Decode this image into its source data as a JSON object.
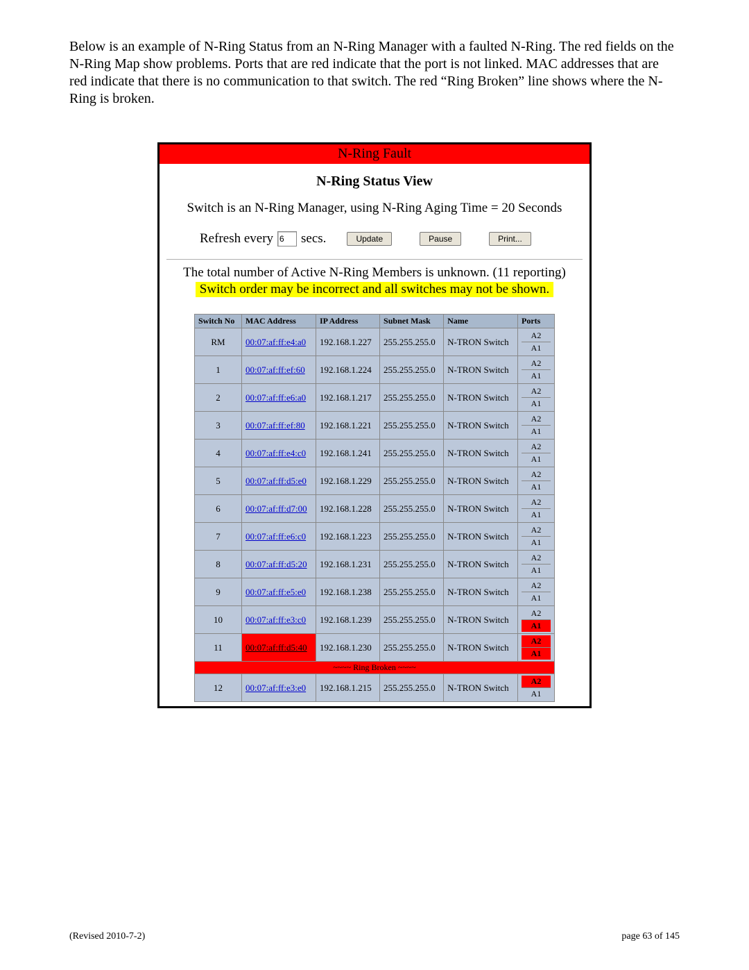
{
  "intro": "Below is an example of N-Ring Status from an N-Ring Manager with a faulted N-Ring.  The red fields on the N-Ring Map show problems.  Ports that are red indicate that the port is not linked.  MAC addresses that are red indicate that there is no communication to that switch.  The red “Ring Broken” line shows where the N-Ring is broken.",
  "fault_banner": "N-Ring Fault",
  "status_title": "N-Ring Status View",
  "mgr_line": "Switch is an N-Ring Manager, using N-Ring Aging Time = 20 Seconds",
  "refresh_prefix": "Refresh every",
  "refresh_value": "6",
  "refresh_suffix": "secs.",
  "btn_update": "Update",
  "btn_pause": "Pause",
  "btn_print": "Print...",
  "unknown_line": "The total number of Active N-Ring Members is unknown. (11 reporting)",
  "warn_line": "Switch order may be incorrect and all switches may not be shown.",
  "columns": [
    "Switch No",
    "MAC Address",
    "IP Address",
    "Subnet Mask",
    "Name",
    "Ports"
  ],
  "ring_broken": "~~~~ Ring Broken ~~~~",
  "rows": [
    {
      "no": "RM",
      "mac": "00:07:af:ff:e4:a0",
      "ip": "192.168.1.227",
      "mask": "255.255.255.0",
      "name": "N-TRON Switch",
      "p1": "A2",
      "p2": "A1",
      "mac_red": false,
      "p1_red": false,
      "p2_red": false
    },
    {
      "no": "1",
      "mac": "00:07:af:ff:ef:60",
      "ip": "192.168.1.224",
      "mask": "255.255.255.0",
      "name": "N-TRON Switch",
      "p1": "A2",
      "p2": "A1",
      "mac_red": false,
      "p1_red": false,
      "p2_red": false
    },
    {
      "no": "2",
      "mac": "00:07:af:ff:e6:a0",
      "ip": "192.168.1.217",
      "mask": "255.255.255.0",
      "name": "N-TRON Switch",
      "p1": "A2",
      "p2": "A1",
      "mac_red": false,
      "p1_red": false,
      "p2_red": false
    },
    {
      "no": "3",
      "mac": "00:07:af:ff:ef:80",
      "ip": "192.168.1.221",
      "mask": "255.255.255.0",
      "name": "N-TRON Switch",
      "p1": "A2",
      "p2": "A1",
      "mac_red": false,
      "p1_red": false,
      "p2_red": false
    },
    {
      "no": "4",
      "mac": "00:07:af:ff:e4:c0",
      "ip": "192.168.1.241",
      "mask": "255.255.255.0",
      "name": "N-TRON Switch",
      "p1": "A2",
      "p2": "A1",
      "mac_red": false,
      "p1_red": false,
      "p2_red": false
    },
    {
      "no": "5",
      "mac": "00:07:af:ff:d5:e0",
      "ip": "192.168.1.229",
      "mask": "255.255.255.0",
      "name": "N-TRON Switch",
      "p1": "A2",
      "p2": "A1",
      "mac_red": false,
      "p1_red": false,
      "p2_red": false
    },
    {
      "no": "6",
      "mac": "00:07:af:ff:d7:00",
      "ip": "192.168.1.228",
      "mask": "255.255.255.0",
      "name": "N-TRON Switch",
      "p1": "A2",
      "p2": "A1",
      "mac_red": false,
      "p1_red": false,
      "p2_red": false
    },
    {
      "no": "7",
      "mac": "00:07:af:ff:e6:c0",
      "ip": "192.168.1.223",
      "mask": "255.255.255.0",
      "name": "N-TRON Switch",
      "p1": "A2",
      "p2": "A1",
      "mac_red": false,
      "p1_red": false,
      "p2_red": false
    },
    {
      "no": "8",
      "mac": "00:07:af:ff:d5:20",
      "ip": "192.168.1.231",
      "mask": "255.255.255.0",
      "name": "N-TRON Switch",
      "p1": "A2",
      "p2": "A1",
      "mac_red": false,
      "p1_red": false,
      "p2_red": false
    },
    {
      "no": "9",
      "mac": "00:07:af:ff:e5:e0",
      "ip": "192.168.1.238",
      "mask": "255.255.255.0",
      "name": "N-TRON Switch",
      "p1": "A2",
      "p2": "A1",
      "mac_red": false,
      "p1_red": false,
      "p2_red": false
    },
    {
      "no": "10",
      "mac": "00:07:af:ff:e3:c0",
      "ip": "192.168.1.239",
      "mask": "255.255.255.0",
      "name": "N-TRON Switch",
      "p1": "A2",
      "p2": "A1",
      "mac_red": false,
      "p1_red": false,
      "p2_red": true
    },
    {
      "no": "11",
      "mac": "00:07:af:ff:d5:40",
      "ip": "192.168.1.230",
      "mask": "255.255.255.0",
      "name": "N-TRON Switch",
      "p1": "A2",
      "p2": "A1",
      "mac_red": true,
      "p1_red": true,
      "p2_red": true
    },
    {
      "broken": true
    },
    {
      "no": "12",
      "mac": "00:07:af:ff:e3:e0",
      "ip": "192.168.1.215",
      "mask": "255.255.255.0",
      "name": "N-TRON Switch",
      "p1": "A2",
      "p2": "A1",
      "mac_red": false,
      "p1_red": true,
      "p2_red": false
    }
  ],
  "footer_left": "(Revised 2010-7-2)",
  "footer_right": "page 63 of 145",
  "colors": {
    "fault_bg": "#ff0000",
    "warn_bg": "#ffff00",
    "row_bg": "#bcc8da",
    "header_bg": "#a8b8cc",
    "link": "#0000cc"
  }
}
